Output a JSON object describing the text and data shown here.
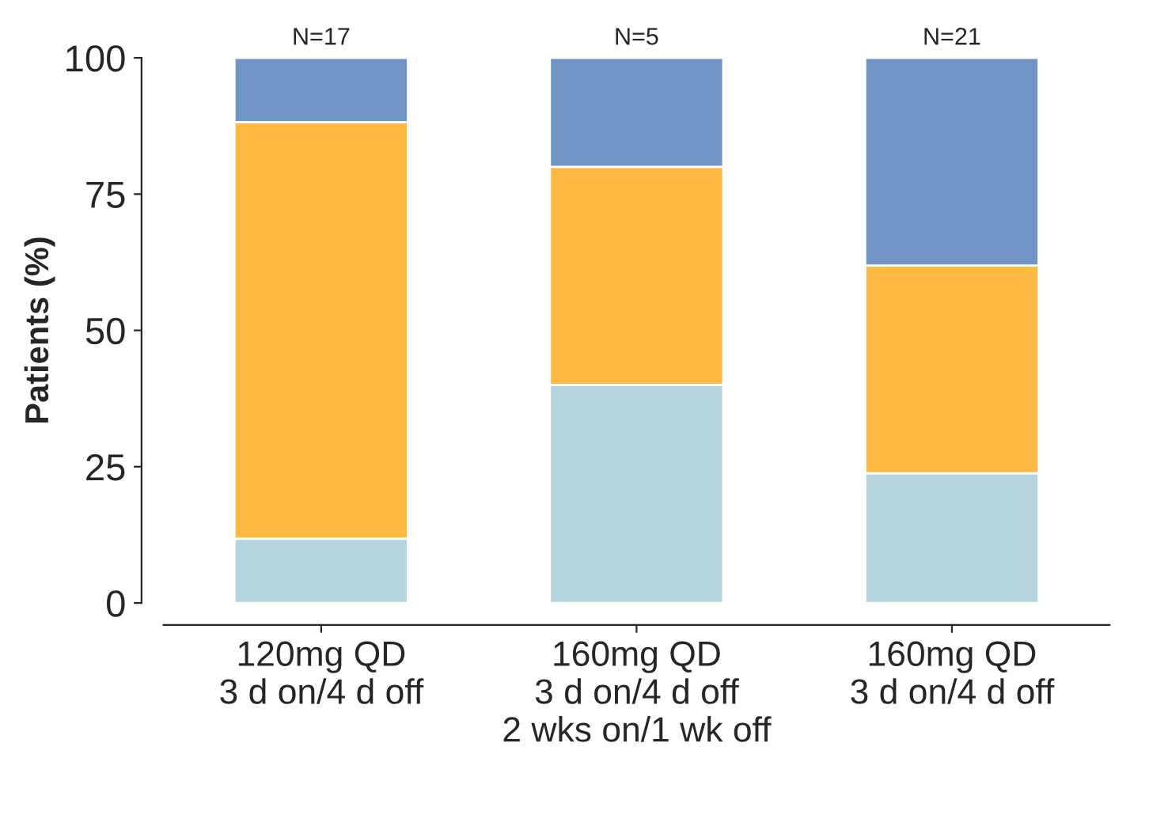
{
  "chart_data": {
    "type": "bar",
    "stacked": true,
    "ylabel": "Patients (%)",
    "categories": [
      "120mg QD\n3 d on/4 d off",
      "160mg QD\n3 d on/4 d off\n2 wks on/1 wk off",
      "160mg QD\n3 d on/4 d off"
    ],
    "series": [
      {
        "color": "#b5d4de",
        "values": [
          11.8,
          40,
          23.8
        ]
      },
      {
        "color": "#fdb942",
        "values": [
          76.4,
          40,
          38.1
        ]
      },
      {
        "color": "#7094c4",
        "values": [
          11.8,
          20,
          38.1
        ]
      }
    ],
    "annotations": [
      {
        "text": "N=17",
        "x": "120mg QD\n3 d on/4 d off",
        "y": 100
      },
      {
        "text": "N=5",
        "x": "160mg QD\n3 d on/4 d off\n2 wks on/1 wk off",
        "y": 100
      },
      {
        "text": "N=21",
        "x": "160mg QD\n3 d on/4 d off",
        "y": 100
      }
    ],
    "ylim": [
      0,
      100
    ],
    "yticks": [
      0,
      25,
      50,
      75,
      100
    ],
    "grid": false
  }
}
